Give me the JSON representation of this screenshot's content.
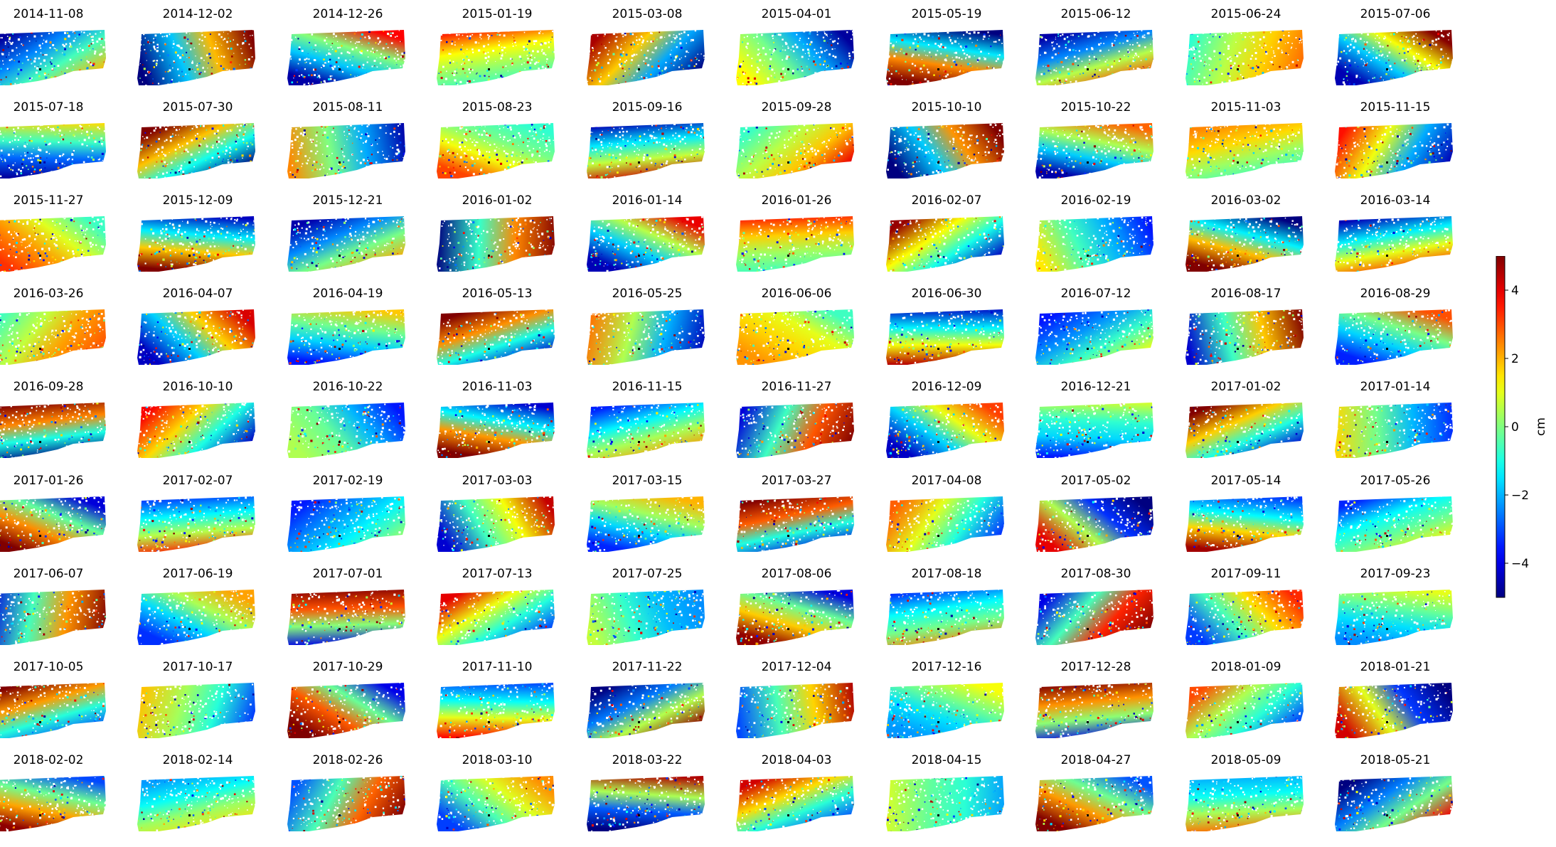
{
  "chart_data": {
    "type": "heatmap",
    "layout": {
      "rows": 9,
      "columns": 10
    },
    "panels": [
      "2014-11-08",
      "2014-12-02",
      "2014-12-26",
      "2015-01-19",
      "2015-03-08",
      "2015-04-01",
      "2015-05-19",
      "2015-06-12",
      "2015-06-24",
      "2015-07-06",
      "2015-07-18",
      "2015-07-30",
      "2015-08-11",
      "2015-08-23",
      "2015-09-16",
      "2015-09-28",
      "2015-10-10",
      "2015-10-22",
      "2015-11-03",
      "2015-11-15",
      "2015-11-27",
      "2015-12-09",
      "2015-12-21",
      "2016-01-02",
      "2016-01-14",
      "2016-01-26",
      "2016-02-07",
      "2016-02-19",
      "2016-03-02",
      "2016-03-14",
      "2016-03-26",
      "2016-04-07",
      "2016-04-19",
      "2016-05-13",
      "2016-05-25",
      "2016-06-06",
      "2016-06-30",
      "2016-07-12",
      "2016-08-17",
      "2016-08-29",
      "2016-09-28",
      "2016-10-10",
      "2016-10-22",
      "2016-11-03",
      "2016-11-15",
      "2016-11-27",
      "2016-12-09",
      "2016-12-21",
      "2017-01-02",
      "2017-01-14",
      "2017-01-26",
      "2017-02-07",
      "2017-02-19",
      "2017-03-03",
      "2017-03-15",
      "2017-03-27",
      "2017-04-08",
      "2017-05-02",
      "2017-05-14",
      "2017-05-26",
      "2017-06-07",
      "2017-06-19",
      "2017-07-01",
      "2017-07-13",
      "2017-07-25",
      "2017-08-06",
      "2017-08-18",
      "2017-08-30",
      "2017-09-11",
      "2017-09-23",
      "2017-10-05",
      "2017-10-17",
      "2017-10-29",
      "2017-11-10",
      "2017-11-22",
      "2017-12-04",
      "2017-12-16",
      "2017-12-28",
      "2018-01-09",
      "2018-01-21",
      "2018-02-02",
      "2018-02-14",
      "2018-02-26",
      "2018-03-10",
      "2018-03-22",
      "2018-04-03",
      "2018-04-15",
      "2018-04-27",
      "2018-05-09",
      "2018-05-21"
    ],
    "colormap": "jet",
    "colorbar": {
      "label": "cm",
      "range": [
        -5,
        5
      ],
      "ticks": [
        -4,
        -2,
        0,
        2,
        4
      ],
      "tick_labels": [
        "−4",
        "−2",
        "0",
        "2",
        "4"
      ]
    },
    "axes": "off"
  }
}
